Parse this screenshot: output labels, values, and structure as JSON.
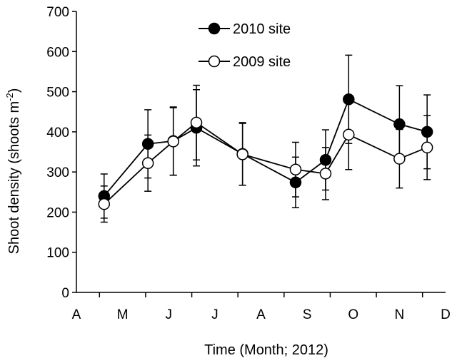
{
  "chart_data": {
    "type": "line",
    "xlabel": "Time (Month; 2012)",
    "ylabel": "Shoot density (shoots m",
    "ylabel_superscript": "-2",
    "ylabel_suffix": ")",
    "ylim": [
      0,
      700
    ],
    "yticks": [
      0,
      100,
      200,
      300,
      400,
      500,
      600,
      700
    ],
    "xlim": [
      0,
      8
    ],
    "xticks": [
      {
        "x": 0,
        "label": "A"
      },
      {
        "x": 1,
        "label": "M"
      },
      {
        "x": 2,
        "label": "J"
      },
      {
        "x": 3,
        "label": "J"
      },
      {
        "x": 4,
        "label": "A"
      },
      {
        "x": 5,
        "label": "S"
      },
      {
        "x": 6,
        "label": "O"
      },
      {
        "x": 7,
        "label": "N"
      },
      {
        "x": 8,
        "label": "D"
      }
    ],
    "legend_position": "top-center",
    "grid": false,
    "series": [
      {
        "name": "2010 site",
        "marker": "filled-circle",
        "color": "#000000",
        "points": [
          {
            "x": 0.6,
            "y": 240,
            "err": 55
          },
          {
            "x": 1.55,
            "y": 370,
            "err": 85
          },
          {
            "x": 2.1,
            "y": 377,
            "err": 85
          },
          {
            "x": 2.6,
            "y": 410,
            "err": 95
          },
          {
            "x": 3.6,
            "y": 345,
            "err": 78
          },
          {
            "x": 4.75,
            "y": 274,
            "err": 63
          },
          {
            "x": 5.4,
            "y": 330,
            "err": 75
          },
          {
            "x": 5.9,
            "y": 481,
            "err": 110
          },
          {
            "x": 7.0,
            "y": 419,
            "err": 96
          },
          {
            "x": 7.6,
            "y": 400,
            "err": 92
          }
        ]
      },
      {
        "name": "2009 site",
        "marker": "open-circle",
        "color": "#000000",
        "points": [
          {
            "x": 0.6,
            "y": 220,
            "err": 45
          },
          {
            "x": 1.55,
            "y": 322,
            "err": 70
          },
          {
            "x": 2.1,
            "y": 376,
            "err": 84
          },
          {
            "x": 2.6,
            "y": 423,
            "err": 93
          },
          {
            "x": 3.6,
            "y": 344,
            "err": 77
          },
          {
            "x": 4.75,
            "y": 306,
            "err": 68
          },
          {
            "x": 5.4,
            "y": 296,
            "err": 65
          },
          {
            "x": 5.9,
            "y": 393,
            "err": 87
          },
          {
            "x": 7.0,
            "y": 333,
            "err": 73
          },
          {
            "x": 7.6,
            "y": 361,
            "err": 80
          }
        ]
      }
    ]
  }
}
